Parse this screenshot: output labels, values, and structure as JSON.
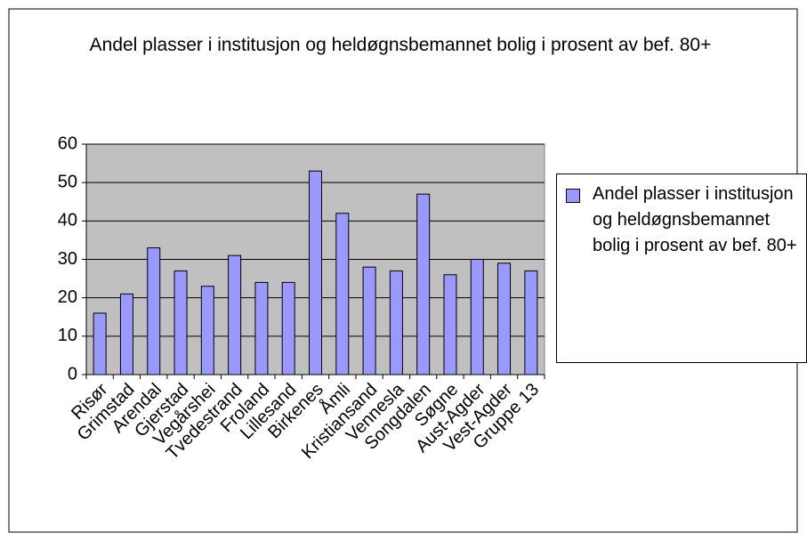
{
  "chart_data": {
    "type": "bar",
    "title": "Andel plasser i institusjon og heldøgnsbemannet bolig i prosent av bef. 80+",
    "categories": [
      "Risør",
      "Grimstad",
      "Arendal",
      "Gjerstad",
      "Vegårshei",
      "Tvedestrand",
      "Froland",
      "Lillesand",
      "Birkenes",
      "Åmli",
      "Kristiansand",
      "Vennesla",
      "Songdalen",
      "Søgne",
      "Aust-Agder",
      "Vest-Agder",
      "Gruppe 13"
    ],
    "series": [
      {
        "name": "Andel plasser i institusjon og heldøgnsbemannet bolig i prosent av bef. 80+",
        "color": "#9999ff",
        "values": [
          16,
          21,
          33,
          27,
          23,
          31,
          24,
          24,
          53,
          42,
          28,
          27,
          47,
          26,
          30,
          29,
          27
        ]
      }
    ],
    "ylim": [
      0,
      60
    ],
    "yticks": [
      0,
      10,
      20,
      30,
      40,
      50,
      60
    ],
    "grid": true,
    "legend": "right"
  }
}
